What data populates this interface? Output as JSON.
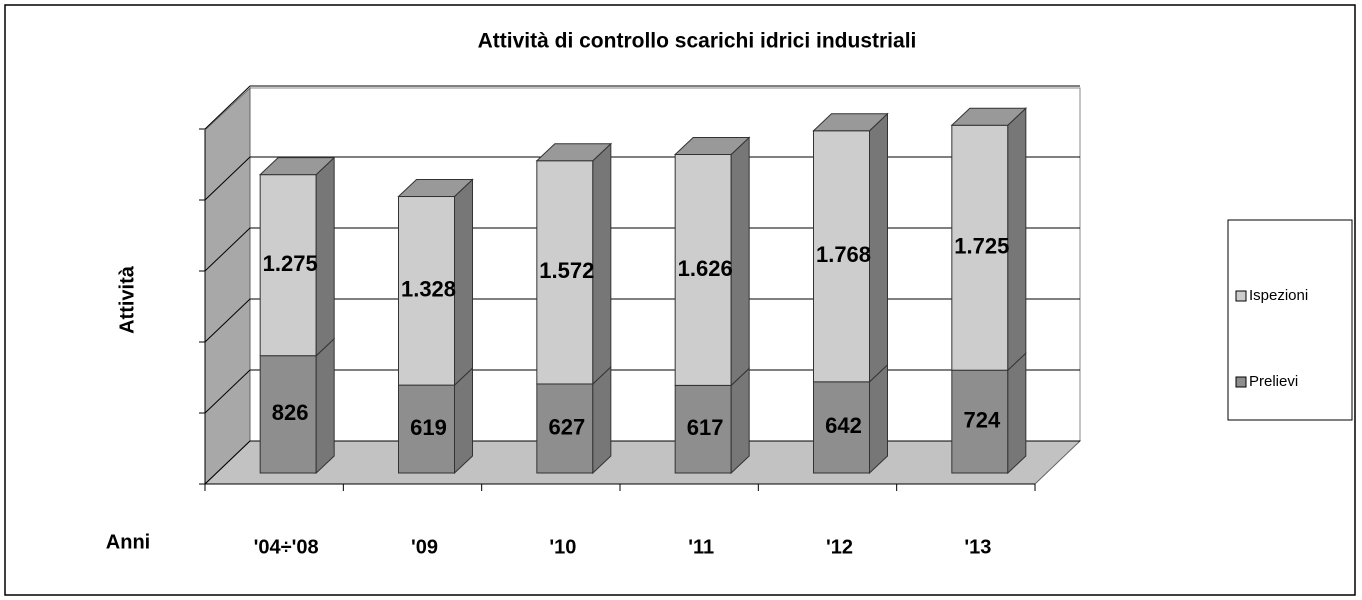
{
  "chart_data": {
    "type": "bar3d-stacked",
    "title": "Attività di controllo scarichi idrici industriali",
    "y_label": "Attività",
    "x_label": "Anni",
    "categories": [
      "'04÷'08",
      "'09",
      "'10",
      "'11",
      "'12",
      "'13"
    ],
    "series": [
      {
        "name": "Prelievi",
        "color": "#8e8e8e",
        "values": [
          826,
          619,
          627,
          617,
          642,
          724
        ]
      },
      {
        "name": "Ispezioni",
        "color": "#cdcdcd",
        "values": [
          1275,
          1328,
          1572,
          1626,
          1768,
          1725
        ],
        "value_labels": [
          "1.275",
          "1.328",
          "1.572",
          "1.626",
          "1.768",
          "1.725"
        ]
      }
    ],
    "legend_order": [
      1,
      0
    ],
    "ylim": [
      0,
      2500
    ],
    "yticks": [
      0,
      500,
      1000,
      1500,
      2000,
      2500
    ],
    "grid": true
  }
}
